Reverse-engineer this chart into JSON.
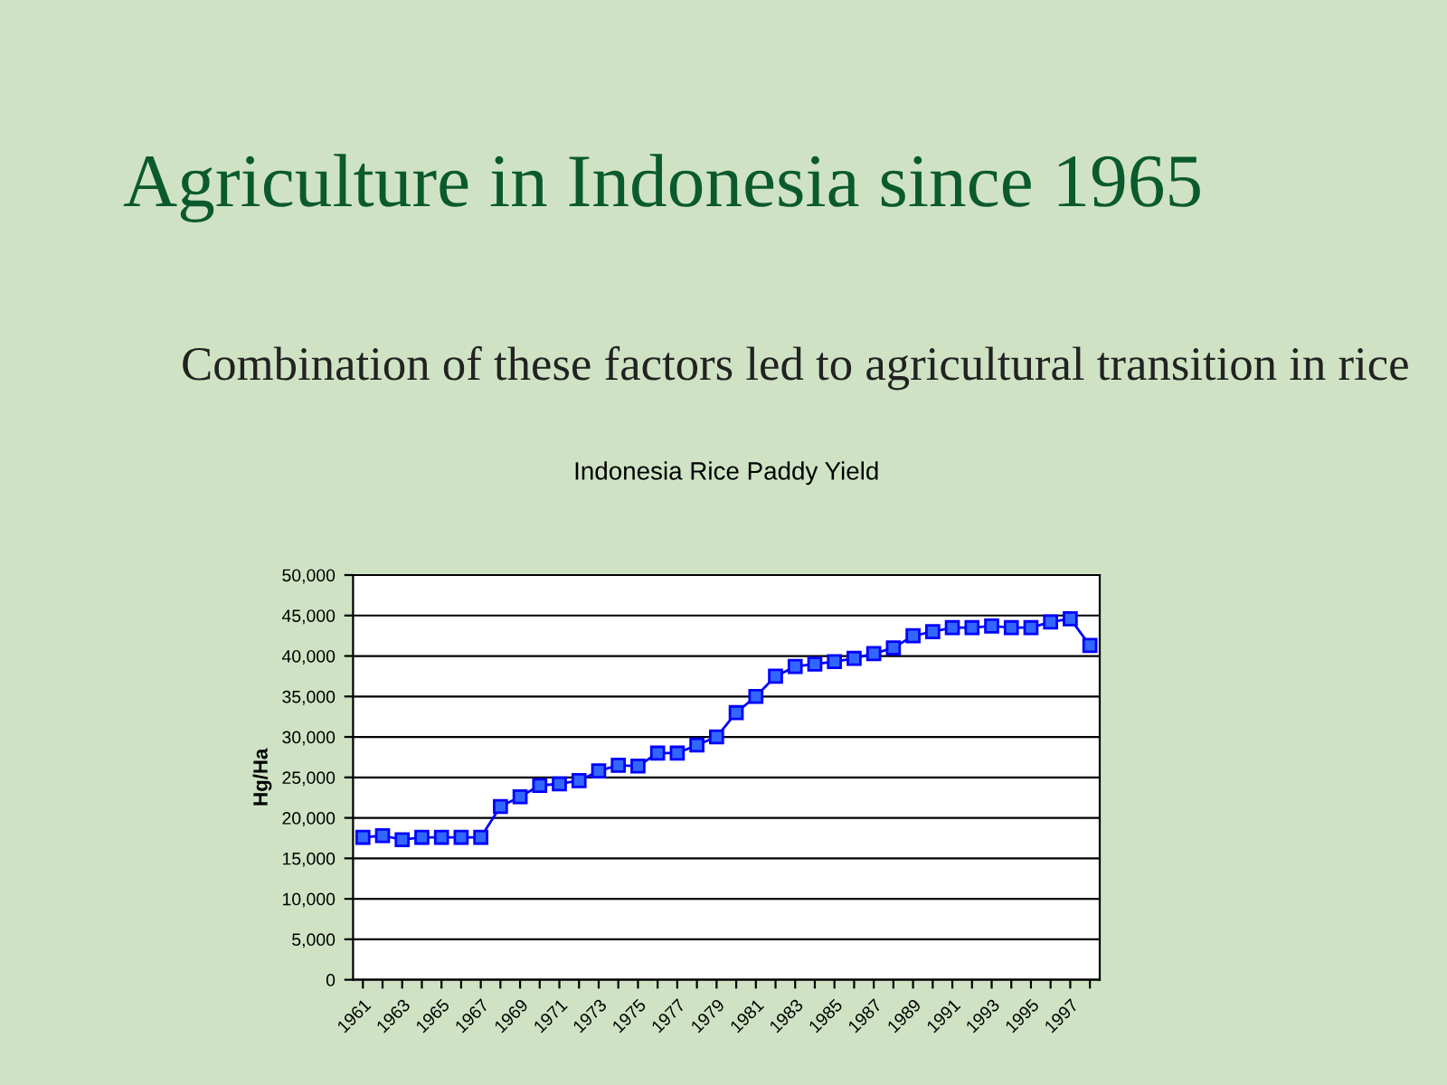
{
  "chart_data": {
    "type": "line",
    "title": "Indonesia Rice Paddy Yield",
    "ylabel": "Hg/Ha",
    "annotations": [
      "Agriculture in Indonesia since 1965",
      "Combination of these factors led to agricultural transition in rice"
    ],
    "categories": [
      "1961",
      null,
      "1963",
      null,
      "1965",
      null,
      "1967",
      null,
      "1969",
      null,
      "1971",
      null,
      "1973",
      null,
      "1975",
      null,
      "1977",
      null,
      "1979",
      null,
      "1981",
      null,
      "1983",
      null,
      "1985",
      null,
      "1987",
      null,
      "1989",
      null,
      "1991",
      null,
      "1993",
      null,
      "1995",
      null,
      "1997",
      null
    ],
    "series": [
      {
        "color": "#0000ff",
        "values": [
          17600,
          17800,
          17300,
          17600,
          17600,
          17600,
          17600,
          21400,
          22600,
          24000,
          24200,
          24600,
          25800,
          26500,
          26400,
          28000,
          28000,
          29000,
          30000,
          33000,
          35000,
          37500,
          38700,
          39000,
          39300,
          39700,
          40300,
          41000,
          42500,
          43000,
          43500,
          43500,
          43700,
          43500,
          43500,
          44200,
          44600,
          41300
        ]
      }
    ],
    "ylim": [
      0,
      50000
    ],
    "yticks": [
      {
        "value": 0,
        "label": "0"
      },
      {
        "value": 5000,
        "label": "5,000"
      },
      {
        "value": 10000,
        "label": "10,000"
      },
      {
        "value": 15000,
        "label": "15,000"
      },
      {
        "value": 20000,
        "label": "20,000"
      },
      {
        "value": 25000,
        "label": "25,000"
      },
      {
        "value": 30000,
        "label": "30,000"
      },
      {
        "value": 35000,
        "label": "35,000"
      },
      {
        "value": 40000,
        "label": "40,000"
      },
      {
        "value": 45000,
        "label": "45,000"
      },
      {
        "value": 50000,
        "label": "50,000"
      }
    ],
    "grid": "y",
    "marker": "square",
    "line_style": "solid"
  }
}
